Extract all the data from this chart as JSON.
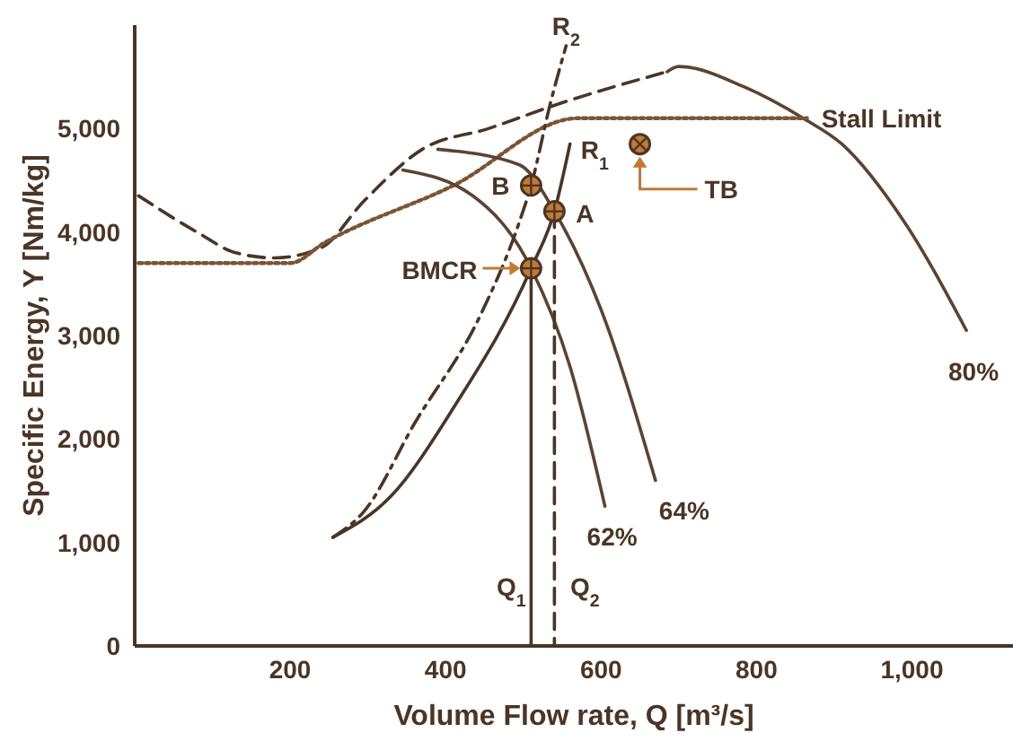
{
  "chart_data": {
    "type": "line",
    "xlabel": "Volume Flow rate, Q [m³/s]",
    "ylabel": "Specific Energy, Y [Nm/kg]",
    "xlim": [
      0,
      1130
    ],
    "ylim": [
      0,
      6000
    ],
    "xticks": [
      200,
      400,
      600,
      800,
      {
        "value": 1000,
        "label": "1,000"
      }
    ],
    "yticks": [
      0,
      {
        "value": 1000,
        "label": "1,000"
      },
      {
        "value": 2000,
        "label": "2,000"
      },
      {
        "value": 3000,
        "label": "3,000"
      },
      {
        "value": 4000,
        "label": "4,000"
      },
      {
        "value": 5000,
        "label": "5,000"
      }
    ],
    "grid": false,
    "series": [
      {
        "line_style": "dashed",
        "color": "#4a3526",
        "x": [
          5,
          80,
          130,
          180,
          240,
          295,
          370,
          455,
          550,
          685
        ],
        "values": [
          4350,
          4000,
          3800,
          3750,
          3850,
          4300,
          4800,
          5000,
          5250,
          5550
        ]
      },
      {
        "name": "80%",
        "line_style": "solid",
        "color": "#5c4332",
        "x": [
          685,
          700,
          785,
          860,
          910,
          990,
          1070
        ],
        "values": [
          5550,
          5600,
          5400,
          5100,
          4850,
          4100,
          3050
        ]
      },
      {
        "name": "Stall Limit",
        "line_style": "dotted",
        "color": "#7a5535",
        "x": [
          5,
          200,
          245,
          410,
          570,
          865
        ],
        "values": [
          3700,
          3700,
          3900,
          4450,
          5100,
          5100
        ]
      },
      {
        "name": "64%",
        "line_style": "solid",
        "color": "#5c4332",
        "x": [
          390,
          495,
          540,
          600,
          670
        ],
        "values": [
          4800,
          4650,
          4200,
          3250,
          1600
        ]
      },
      {
        "name": "62%",
        "line_style": "solid",
        "color": "#5c4332",
        "x": [
          345,
          435,
          510,
          560,
          605
        ],
        "values": [
          4600,
          4350,
          3650,
          2700,
          1350
        ]
      },
      {
        "name": "R$_{1}$",
        "line_style": "solid",
        "color": "#4a3526",
        "x": [
          255,
          330,
          410,
          510,
          540,
          560
        ],
        "values": [
          1050,
          1450,
          2300,
          3650,
          4200,
          4850
        ]
      },
      {
        "name": "R$_{2}$",
        "line_style": "dashdot",
        "color": "#4a3526",
        "x": [
          255,
          295,
          360,
          445,
          495,
          510,
          535,
          555
        ],
        "values": [
          1050,
          1300,
          2150,
          3200,
          4100,
          4450,
          5250,
          5800
        ]
      },
      {
        "name": "Q$_{1}$",
        "line_style": "solid",
        "color": "#4a3526",
        "x": [
          510,
          510
        ],
        "values": [
          3650,
          0
        ]
      },
      {
        "name": "Q$_{2}$",
        "line_style": "dashed",
        "color": "#4a3526",
        "x": [
          540,
          540
        ],
        "values": [
          4200,
          0
        ]
      },
      {
        "type": "scatter",
        "marker": "circle",
        "color": "#c07a35",
        "x": [
          510,
          540,
          510,
          650
        ],
        "values": [
          4450,
          4200,
          3650,
          4850
        ]
      }
    ],
    "annotations": [
      {
        "text": "B",
        "x": 510,
        "y": 4450
      },
      {
        "text": "A",
        "x": 540,
        "y": 4200
      },
      {
        "text": "BMCR",
        "x": 510,
        "y": 3650
      },
      {
        "text": "TB",
        "x": 650,
        "y": 4850
      }
    ]
  }
}
